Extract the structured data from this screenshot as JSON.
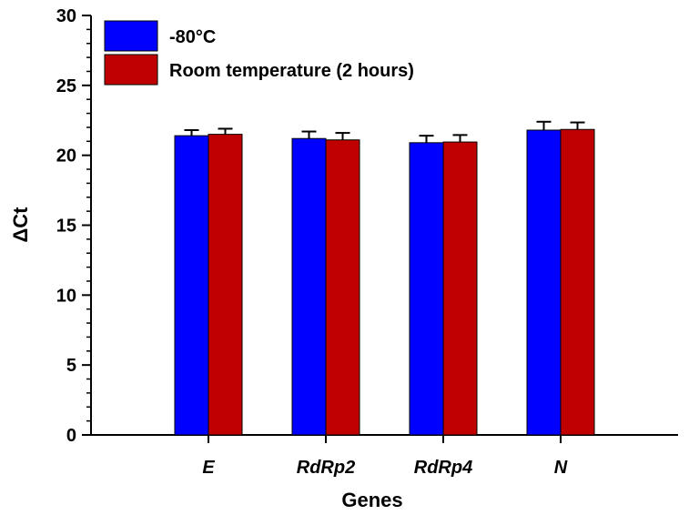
{
  "chart_data": {
    "type": "bar",
    "title": "",
    "xlabel": "Genes",
    "ylabel": "ΔCt",
    "ylim": [
      0,
      30
    ],
    "yticks": [
      0,
      5,
      10,
      15,
      20,
      25,
      30
    ],
    "categories": [
      "E",
      "RdRp2",
      "RdRp4",
      "N"
    ],
    "series": [
      {
        "name": "-80°C",
        "color": "#0000ff",
        "values": [
          21.4,
          21.2,
          20.9,
          21.8
        ],
        "errors": [
          0.4,
          0.5,
          0.5,
          0.6
        ]
      },
      {
        "name": "Room temperature (2 hours)",
        "color": "#c00000",
        "values": [
          21.5,
          21.1,
          20.95,
          21.85
        ],
        "errors": [
          0.4,
          0.5,
          0.5,
          0.5
        ]
      }
    ],
    "legend_position": "top-left",
    "grid": false
  }
}
